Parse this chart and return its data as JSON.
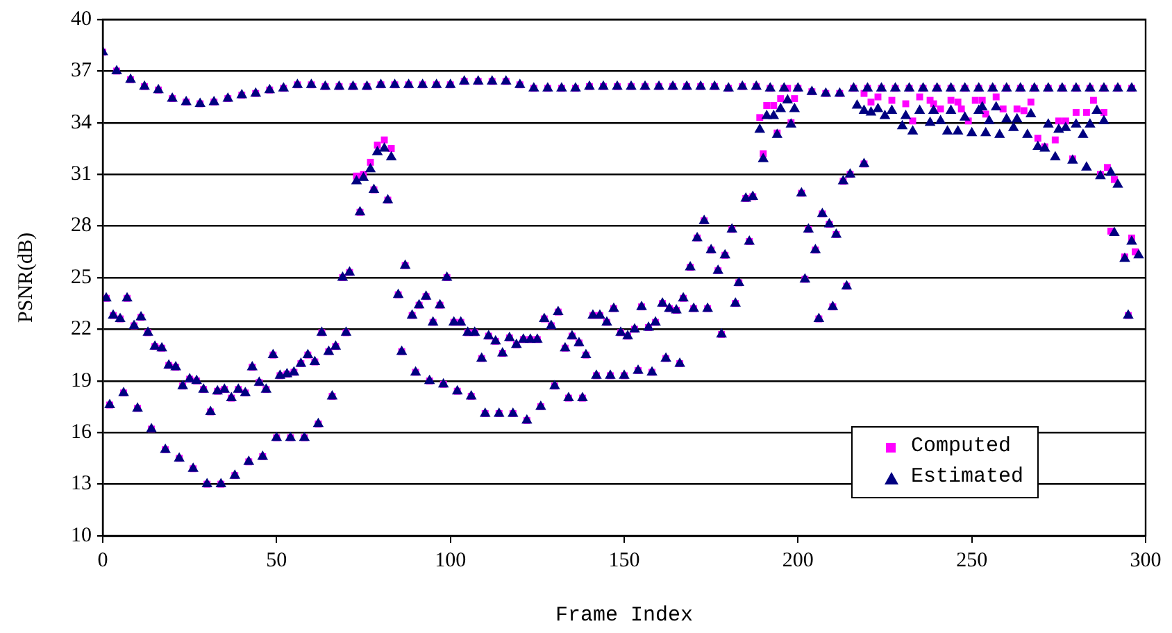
{
  "chart_data": {
    "type": "scatter",
    "xlabel": "Frame Index",
    "ylabel": "PSNR(dB)",
    "xlim": [
      0,
      300
    ],
    "xticks": [
      0,
      50,
      100,
      150,
      200,
      250,
      300
    ],
    "ylim": [
      10,
      40
    ],
    "yticks": [
      10,
      13,
      16,
      19,
      22,
      25,
      28,
      31,
      34,
      37,
      40
    ],
    "grid": "y",
    "legend": "bottom right",
    "series": [
      {
        "name": "Computed",
        "color": "#ff00ff",
        "marker": "square",
        "x": [
          0,
          4,
          8,
          12,
          16,
          20,
          24,
          28,
          32,
          36,
          40,
          44,
          48,
          52,
          56,
          60,
          64,
          68,
          72,
          76,
          80,
          84,
          88,
          92,
          96,
          100,
          104,
          108,
          112,
          116,
          120,
          124,
          128,
          132,
          136,
          140,
          144,
          148,
          152,
          156,
          160,
          164,
          168,
          172,
          176,
          180,
          184,
          188,
          192,
          196,
          200,
          204,
          208,
          212,
          216,
          220,
          224,
          228,
          232,
          236,
          240,
          244,
          248,
          252,
          256,
          260,
          264,
          268,
          272,
          276,
          280,
          284,
          288,
          292,
          296,
          1,
          2,
          3,
          5,
          6,
          7,
          9,
          10,
          11,
          13,
          14,
          15,
          17,
          18,
          19,
          21,
          22,
          23,
          25,
          26,
          27,
          29,
          30,
          31,
          33,
          34,
          35,
          37,
          38,
          39,
          41,
          42,
          43,
          45,
          46,
          47,
          49,
          50,
          51,
          53,
          54,
          55,
          57,
          58,
          59,
          61,
          62,
          63,
          65,
          66,
          67,
          69,
          70,
          71,
          73,
          74,
          75,
          77,
          78,
          79,
          81,
          82,
          83,
          85,
          86,
          87,
          89,
          90,
          91,
          93,
          94,
          95,
          97,
          98,
          99,
          101,
          102,
          103,
          105,
          106,
          107,
          109,
          110,
          111,
          113,
          114,
          115,
          117,
          118,
          119,
          121,
          122,
          123,
          125,
          126,
          127,
          129,
          130,
          131,
          133,
          134,
          135,
          137,
          138,
          139,
          141,
          142,
          143,
          145,
          146,
          147,
          149,
          150,
          151,
          153,
          154,
          155,
          157,
          158,
          159,
          161,
          162,
          163,
          165,
          166,
          167,
          169,
          170,
          171,
          173,
          174,
          175,
          177,
          178,
          179,
          181,
          182,
          183,
          185,
          186,
          187,
          189,
          190,
          191,
          193,
          194,
          195,
          197,
          198,
          199,
          201,
          202,
          203,
          205,
          206,
          207,
          209,
          210,
          211,
          213,
          214,
          215,
          219,
          219,
          221,
          223,
          227,
          231,
          233,
          235,
          238,
          239,
          241,
          244,
          246,
          247,
          249,
          251,
          253,
          254,
          257,
          259,
          263,
          265,
          267,
          269,
          271,
          274,
          275,
          277,
          279,
          280,
          283,
          285,
          287,
          288,
          289,
          290,
          291,
          294,
          295,
          296,
          297
        ],
        "values": [
          38.1,
          37.0,
          36.5,
          36.1,
          35.9,
          35.4,
          35.2,
          35.1,
          35.2,
          35.4,
          35.6,
          35.7,
          35.9,
          36.0,
          36.2,
          36.2,
          36.1,
          36.1,
          36.1,
          36.1,
          36.2,
          36.2,
          36.2,
          36.2,
          36.2,
          36.2,
          36.4,
          36.4,
          36.4,
          36.4,
          36.2,
          36.0,
          36.0,
          36.0,
          36.0,
          36.1,
          36.1,
          36.1,
          36.1,
          36.1,
          36.1,
          36.1,
          36.1,
          36.1,
          36.1,
          36.0,
          36.1,
          36.1,
          36.0,
          36.0,
          36.0,
          35.8,
          35.7,
          35.7,
          36.0,
          36.0,
          36.0,
          36.0,
          36.0,
          36.0,
          36.0,
          36.0,
          36.0,
          36.0,
          36.0,
          36.0,
          36.0,
          36.0,
          36.0,
          36.0,
          36.0,
          36.0,
          36.0,
          36.0,
          36.0,
          23.8,
          17.6,
          22.8,
          22.6,
          18.3,
          23.8,
          22.2,
          17.4,
          22.7,
          21.8,
          16.2,
          21.0,
          20.9,
          15.0,
          19.9,
          19.8,
          14.5,
          18.7,
          19.1,
          13.9,
          19.0,
          18.5,
          13.0,
          17.2,
          18.4,
          13.0,
          18.5,
          18.0,
          13.5,
          18.5,
          18.3,
          14.3,
          19.8,
          18.9,
          14.6,
          18.5,
          20.5,
          15.7,
          19.3,
          19.4,
          15.7,
          19.5,
          20.0,
          15.7,
          20.5,
          20.1,
          16.5,
          21.8,
          20.7,
          18.1,
          21.0,
          25.0,
          21.8,
          25.3,
          30.9,
          28.8,
          31.0,
          31.7,
          30.1,
          32.7,
          33.0,
          29.5,
          32.5,
          24.0,
          20.7,
          25.7,
          22.8,
          19.5,
          23.4,
          23.9,
          19.0,
          22.4,
          23.4,
          18.8,
          25.0,
          22.4,
          18.4,
          22.4,
          21.8,
          18.1,
          21.8,
          20.3,
          17.1,
          21.6,
          21.3,
          17.1,
          20.6,
          21.5,
          17.1,
          21.1,
          21.4,
          16.7,
          21.4,
          21.4,
          17.5,
          22.6,
          22.2,
          18.7,
          23.0,
          20.9,
          18.0,
          21.6,
          21.2,
          18.0,
          20.5,
          22.8,
          19.3,
          22.8,
          22.4,
          19.3,
          23.2,
          21.8,
          19.3,
          21.6,
          22.0,
          19.6,
          23.3,
          22.1,
          19.5,
          22.4,
          23.5,
          20.3,
          23.2,
          23.1,
          20.0,
          23.8,
          25.6,
          23.2,
          27.3,
          28.3,
          23.2,
          26.6,
          25.4,
          21.7,
          26.3,
          27.8,
          23.5,
          24.7,
          29.6,
          27.1,
          29.7,
          34.3,
          32.2,
          35.0,
          35.0,
          33.4,
          35.4,
          36.0,
          34.0,
          35.4,
          29.9,
          24.9,
          27.8,
          26.6,
          22.6,
          28.7,
          28.1,
          23.3,
          27.5,
          30.6,
          24.5,
          31.0,
          31.6,
          35.7,
          35.2,
          35.5,
          35.3,
          35.1,
          34.1,
          35.5,
          35.3,
          35.1,
          34.8,
          35.3,
          35.2,
          34.8,
          34.1,
          35.3,
          35.3,
          34.5,
          35.5,
          34.8,
          34.8,
          34.7,
          35.2,
          33.1,
          32.6,
          33.0,
          34.1,
          34.1,
          31.9,
          34.6,
          34.6,
          35.3,
          31.0,
          34.6,
          31.4,
          27.7,
          30.7,
          26.2,
          22.8,
          27.3,
          26.5
        ]
      },
      {
        "name": "Estimated",
        "color": "#000080",
        "marker": "triangle",
        "x": [
          0,
          4,
          8,
          12,
          16,
          20,
          24,
          28,
          32,
          36,
          40,
          44,
          48,
          52,
          56,
          60,
          64,
          68,
          72,
          76,
          80,
          84,
          88,
          92,
          96,
          100,
          104,
          108,
          112,
          116,
          120,
          124,
          128,
          132,
          136,
          140,
          144,
          148,
          152,
          156,
          160,
          164,
          168,
          172,
          176,
          180,
          184,
          188,
          192,
          196,
          200,
          204,
          208,
          212,
          216,
          220,
          224,
          228,
          232,
          236,
          240,
          244,
          248,
          252,
          256,
          260,
          264,
          268,
          272,
          276,
          280,
          284,
          288,
          292,
          296,
          1,
          2,
          3,
          5,
          6,
          7,
          9,
          10,
          11,
          13,
          14,
          15,
          17,
          18,
          19,
          21,
          22,
          23,
          25,
          26,
          27,
          29,
          30,
          31,
          33,
          34,
          35,
          37,
          38,
          39,
          41,
          42,
          43,
          45,
          46,
          47,
          49,
          50,
          51,
          53,
          54,
          55,
          57,
          58,
          59,
          61,
          62,
          63,
          65,
          66,
          67,
          69,
          70,
          71,
          73,
          74,
          75,
          77,
          78,
          79,
          81,
          82,
          83,
          85,
          86,
          87,
          89,
          90,
          91,
          93,
          94,
          95,
          97,
          98,
          99,
          101,
          102,
          103,
          105,
          106,
          107,
          109,
          110,
          111,
          113,
          114,
          115,
          117,
          118,
          119,
          121,
          122,
          123,
          125,
          126,
          127,
          129,
          130,
          131,
          133,
          134,
          135,
          137,
          138,
          139,
          141,
          142,
          143,
          145,
          146,
          147,
          149,
          150,
          151,
          153,
          154,
          155,
          157,
          158,
          159,
          161,
          162,
          163,
          165,
          166,
          167,
          169,
          170,
          171,
          173,
          174,
          175,
          177,
          178,
          179,
          181,
          182,
          183,
          185,
          186,
          187,
          189,
          190,
          191,
          193,
          194,
          195,
          197,
          198,
          199,
          201,
          202,
          203,
          205,
          206,
          207,
          209,
          210,
          211,
          213,
          214,
          215,
          219,
          217,
          219,
          221,
          223,
          225,
          227,
          230,
          231,
          233,
          235,
          238,
          239,
          241,
          243,
          244,
          246,
          248,
          250,
          252,
          253,
          254,
          255,
          257,
          258,
          260,
          262,
          263,
          266,
          267,
          269,
          271,
          272,
          274,
          275,
          277,
          279,
          280,
          282,
          283,
          284,
          286,
          287,
          288,
          290,
          291,
          292,
          294,
          295,
          296,
          298
        ],
        "values": [
          38.1,
          37.0,
          36.5,
          36.1,
          35.9,
          35.4,
          35.2,
          35.1,
          35.2,
          35.4,
          35.6,
          35.7,
          35.9,
          36.0,
          36.2,
          36.2,
          36.1,
          36.1,
          36.1,
          36.1,
          36.2,
          36.2,
          36.2,
          36.2,
          36.2,
          36.2,
          36.4,
          36.4,
          36.4,
          36.4,
          36.2,
          36.0,
          36.0,
          36.0,
          36.0,
          36.1,
          36.1,
          36.1,
          36.1,
          36.1,
          36.1,
          36.1,
          36.1,
          36.1,
          36.1,
          36.0,
          36.1,
          36.1,
          36.0,
          36.0,
          36.0,
          35.8,
          35.7,
          35.7,
          36.0,
          36.0,
          36.0,
          36.0,
          36.0,
          36.0,
          36.0,
          36.0,
          36.0,
          36.0,
          36.0,
          36.0,
          36.0,
          36.0,
          36.0,
          36.0,
          36.0,
          36.0,
          36.0,
          36.0,
          36.0,
          23.8,
          17.6,
          22.8,
          22.6,
          18.3,
          23.8,
          22.2,
          17.4,
          22.7,
          21.8,
          16.2,
          21.0,
          20.9,
          15.0,
          19.9,
          19.8,
          14.5,
          18.7,
          19.1,
          13.9,
          19.0,
          18.5,
          13.0,
          17.2,
          18.4,
          13.0,
          18.5,
          18.0,
          13.5,
          18.5,
          18.3,
          14.3,
          19.8,
          18.9,
          14.6,
          18.5,
          20.5,
          15.7,
          19.3,
          19.4,
          15.7,
          19.5,
          20.0,
          15.7,
          20.5,
          20.1,
          16.5,
          21.8,
          20.7,
          18.1,
          21.0,
          25.0,
          21.8,
          25.3,
          30.6,
          28.8,
          30.8,
          31.3,
          30.1,
          32.3,
          32.5,
          29.5,
          32.0,
          24.0,
          20.7,
          25.7,
          22.8,
          19.5,
          23.4,
          23.9,
          19.0,
          22.4,
          23.4,
          18.8,
          25.0,
          22.4,
          18.4,
          22.4,
          21.8,
          18.1,
          21.8,
          20.3,
          17.1,
          21.6,
          21.3,
          17.1,
          20.6,
          21.5,
          17.1,
          21.1,
          21.4,
          16.7,
          21.4,
          21.4,
          17.5,
          22.6,
          22.2,
          18.7,
          23.0,
          20.9,
          18.0,
          21.6,
          21.2,
          18.0,
          20.5,
          22.8,
          19.3,
          22.8,
          22.4,
          19.3,
          23.2,
          21.8,
          19.3,
          21.6,
          22.0,
          19.6,
          23.3,
          22.1,
          19.5,
          22.4,
          23.5,
          20.3,
          23.2,
          23.1,
          20.0,
          23.8,
          25.6,
          23.2,
          27.3,
          28.3,
          23.2,
          26.6,
          25.4,
          21.7,
          26.3,
          27.8,
          23.5,
          24.7,
          29.6,
          27.1,
          29.7,
          33.6,
          31.9,
          34.4,
          34.4,
          33.3,
          34.8,
          35.3,
          33.9,
          34.8,
          29.9,
          24.9,
          27.8,
          26.6,
          22.6,
          28.7,
          28.1,
          23.3,
          27.5,
          30.6,
          24.5,
          31.0,
          31.6,
          35.0,
          34.7,
          34.6,
          34.8,
          34.4,
          34.7,
          33.8,
          34.4,
          33.5,
          34.7,
          34.0,
          34.7,
          34.1,
          33.5,
          34.7,
          33.5,
          34.3,
          33.4,
          34.7,
          34.9,
          33.4,
          34.1,
          34.9,
          33.3,
          34.2,
          33.7,
          34.2,
          33.3,
          34.5,
          32.6,
          32.5,
          33.9,
          32.0,
          33.6,
          33.7,
          31.8,
          33.9,
          33.3,
          31.4,
          33.9,
          34.7,
          30.9,
          34.1,
          31.1,
          27.6,
          30.4,
          26.1,
          22.8,
          27.1,
          26.3
        ]
      }
    ]
  }
}
